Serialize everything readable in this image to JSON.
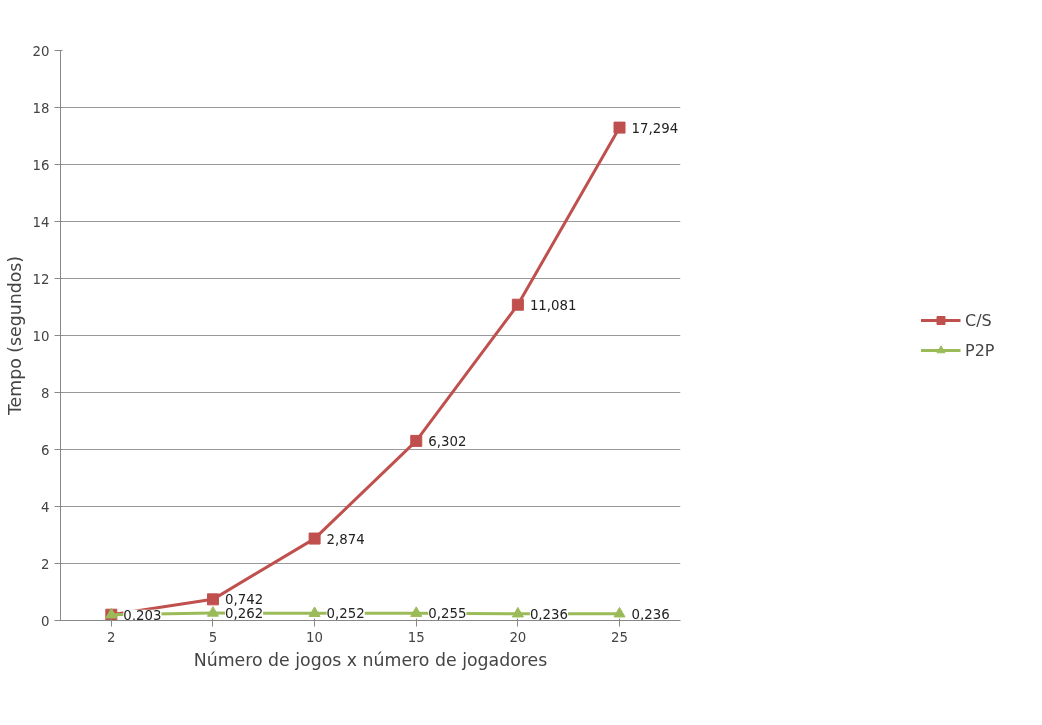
{
  "chart_data": {
    "type": "line",
    "xlabel": "Número de jogos x número de jogadores",
    "ylabel": "Tempo (segundos)",
    "categories": [
      "2",
      "5",
      "10",
      "15",
      "20",
      "25"
    ],
    "ylim": [
      0,
      20
    ],
    "yticks": [
      0,
      2,
      4,
      6,
      8,
      10,
      12,
      14,
      16,
      18,
      20
    ],
    "grid": "y",
    "legend": "right",
    "line_style": "solid",
    "series": [
      {
        "name": "C/S",
        "color": "#c0504d",
        "marker": "square",
        "values": [
          0.203,
          0.742,
          2.874,
          6.302,
          11.081,
          17.294
        ],
        "value_labels": [
          "0,203",
          "0,742",
          "2,874",
          "6,302",
          "11,081",
          "17,294"
        ]
      },
      {
        "name": "P2P",
        "color": "#9bbb59",
        "marker": "triangle",
        "values": [
          0.2,
          0.262,
          0.252,
          0.255,
          0.236,
          0.236
        ],
        "value_labels": [
          null,
          "0,262",
          "0,252",
          "0,255",
          "0,236",
          "0,236"
        ]
      }
    ]
  }
}
